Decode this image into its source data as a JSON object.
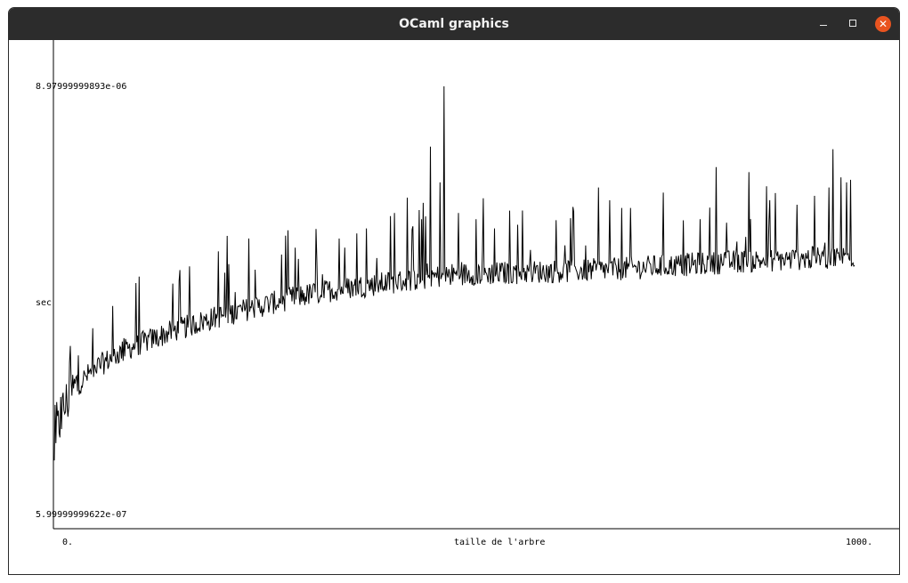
{
  "window": {
    "title": "OCaml graphics",
    "minimize_glyph": "",
    "maximize_glyph": "",
    "close_glyph": "✕"
  },
  "icons": {
    "minimize": "minimize-icon",
    "maximize": "maximize-icon",
    "close": "close-icon"
  },
  "colors": {
    "titlebar": "#2c2c2c",
    "close_button": "#e95420",
    "line": "#000000"
  },
  "chart_data": {
    "type": "line",
    "title": "",
    "xlabel": "taille de l'arbre",
    "ylabel": "sec",
    "x_tick_labels": [
      "0.",
      "1000."
    ],
    "y_tick_labels": [
      "5.99999999622e-07",
      "8.97999999893e-06"
    ],
    "xlim": [
      0,
      1000
    ],
    "ylim": [
      5.99999999622e-07,
      8.97999999893e-06
    ],
    "grid": false,
    "legend": "none",
    "trend": {
      "description_free": true,
      "x": [
        0,
        5,
        10,
        20,
        30,
        50,
        80,
        100,
        150,
        200,
        250,
        300,
        350,
        400,
        450,
        500,
        550,
        600,
        650,
        700,
        750,
        800,
        850,
        900,
        950,
        1000
      ],
      "y": [
        1.5e-06,
        2.3e-06,
        2.6e-06,
        2.95e-06,
        3.15e-06,
        3.45e-06,
        3.75e-06,
        3.9e-06,
        4.2e-06,
        4.45e-06,
        4.65e-06,
        4.85e-06,
        5e-06,
        5.1e-06,
        5.2e-06,
        5.3e-06,
        5.32e-06,
        5.35e-06,
        5.37e-06,
        5.4e-06,
        5.45e-06,
        5.5e-06,
        5.55e-06,
        5.58e-06,
        5.62e-06,
        5.65e-06
      ]
    },
    "spikes": {
      "x": [
        3,
        8,
        20,
        205,
        218,
        243,
        328,
        356,
        378,
        390,
        425,
        441,
        461,
        470,
        482,
        487,
        505,
        585,
        680,
        694,
        709,
        720,
        761,
        827,
        868,
        968,
        973,
        983,
        990,
        995
      ],
      "y": [
        2.8e-06,
        2.9e-06,
        3.9e-06,
        5.75e-06,
        5.5e-06,
        6e-06,
        5.6e-06,
        6e-06,
        6.1e-06,
        6.2e-06,
        6.5e-06,
        6.8e-06,
        6.7e-06,
        7.8e-06,
        7.1e-06,
        8.98e-06,
        6.5e-06,
        6.55e-06,
        7e-06,
        6.75e-06,
        6.6e-06,
        6.6e-06,
        6.9e-06,
        7.4e-06,
        7.3e-06,
        7e-06,
        7.75e-06,
        7.2e-06,
        7.1e-06,
        7.15e-06
      ]
    },
    "noise_amplitude": 2.3e-07
  }
}
